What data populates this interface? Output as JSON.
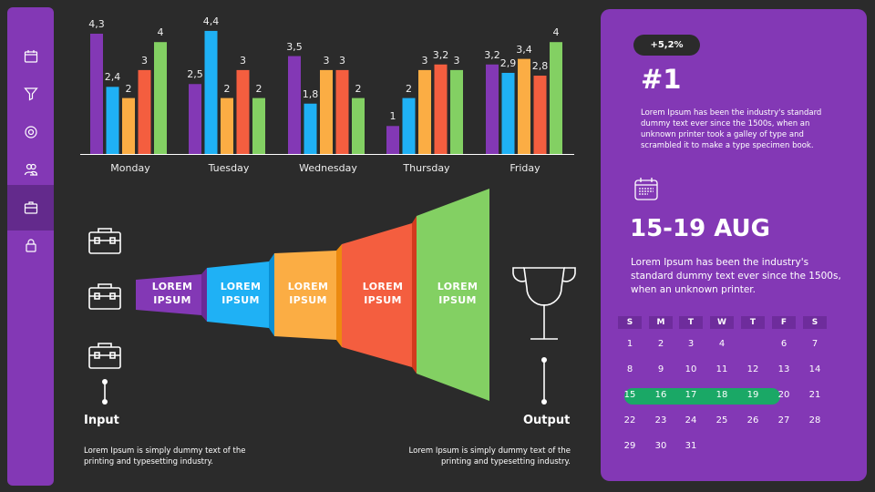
{
  "sidebar": {
    "items": [
      {
        "icon": "calendar-icon"
      },
      {
        "icon": "filter-icon"
      },
      {
        "icon": "settings-icon"
      },
      {
        "icon": "users-icon"
      },
      {
        "icon": "briefcase-icon",
        "active": true
      },
      {
        "icon": "lock-icon"
      }
    ]
  },
  "chart_data": {
    "type": "bar",
    "categories": [
      "Monday",
      "Tuesday",
      "Wednesday",
      "Thursday",
      "Friday"
    ],
    "series": [
      {
        "color": "#8338b5",
        "values": [
          4.3,
          2.5,
          3.5,
          1,
          3.2
        ]
      },
      {
        "color": "#1fb1f5",
        "values": [
          2.4,
          4.4,
          1.8,
          2,
          2.9
        ]
      },
      {
        "color": "#fbad44",
        "values": [
          2,
          2,
          3,
          3,
          3.4
        ]
      },
      {
        "color": "#f45e3f",
        "values": [
          3,
          3,
          3,
          3.2,
          2.8
        ]
      },
      {
        "color": "#83d063",
        "values": [
          4,
          2,
          2,
          3,
          4
        ]
      }
    ],
    "labels": [
      [
        "4,3",
        "2,4",
        "2",
        "3",
        "4"
      ],
      [
        "2,5",
        "4,4",
        "2",
        "3",
        "2"
      ],
      [
        "3,5",
        "1,8",
        "3",
        "3",
        "2"
      ],
      [
        "1",
        "2",
        "3",
        "3,2",
        "3"
      ],
      [
        "3,2",
        "2,9",
        "3,4",
        "2,8",
        "4"
      ]
    ],
    "grid": false,
    "legend": "none"
  },
  "funnel": {
    "segments": [
      {
        "line1": "LOREM",
        "line2": "IPSUM",
        "color": "#8338b5"
      },
      {
        "line1": "LOREM",
        "line2": "IPSUM",
        "color": "#1fb1f5"
      },
      {
        "line1": "LOREM",
        "line2": "IPSUM",
        "color": "#fbad44"
      },
      {
        "line1": "LOREM",
        "line2": "IPSUM",
        "color": "#f45e3f"
      },
      {
        "line1": "LOREM",
        "line2": "IPSUM",
        "color": "#83d063"
      }
    ]
  },
  "input": {
    "title": "Input",
    "text1": "Lorem Ipsum is simply dummy text of the",
    "text2": "printing and typesetting industry."
  },
  "output": {
    "title": "Output",
    "text1": "Lorem Ipsum is simply dummy text of the",
    "text2": "printing and typesetting industry."
  },
  "panel": {
    "badge": "+5,2%",
    "rank": "#1",
    "rank_text": [
      "Lorem Ipsum has been the industry's standard",
      "dummy text ever since the 1500s, when an",
      "unknown printer took a galley of type and",
      "scrambled it to make a type specimen book."
    ],
    "date": "15-19 AUG",
    "date_text": [
      "Lorem Ipsum has been the industry's",
      "standard dummy text ever since the 1500s,",
      "when an unknown printer."
    ],
    "calendar": {
      "headers": [
        "S",
        "M",
        "T",
        "W",
        "T",
        "F",
        "S"
      ],
      "weeks": [
        [
          "1",
          "2",
          "3",
          "4",
          "6",
          "7"
        ],
        [
          "8",
          "9",
          "10",
          "11",
          "12",
          "13",
          "14"
        ],
        [
          "15",
          "16",
          "17",
          "18",
          "19",
          "20",
          "21"
        ],
        [
          "22",
          "23",
          "24",
          "25",
          "26",
          "27",
          "28"
        ],
        [
          "29",
          "30",
          "31"
        ]
      ],
      "highlight": [
        "15",
        "16",
        "17",
        "18",
        "19"
      ],
      "highlight_color": "#1aa866"
    }
  }
}
